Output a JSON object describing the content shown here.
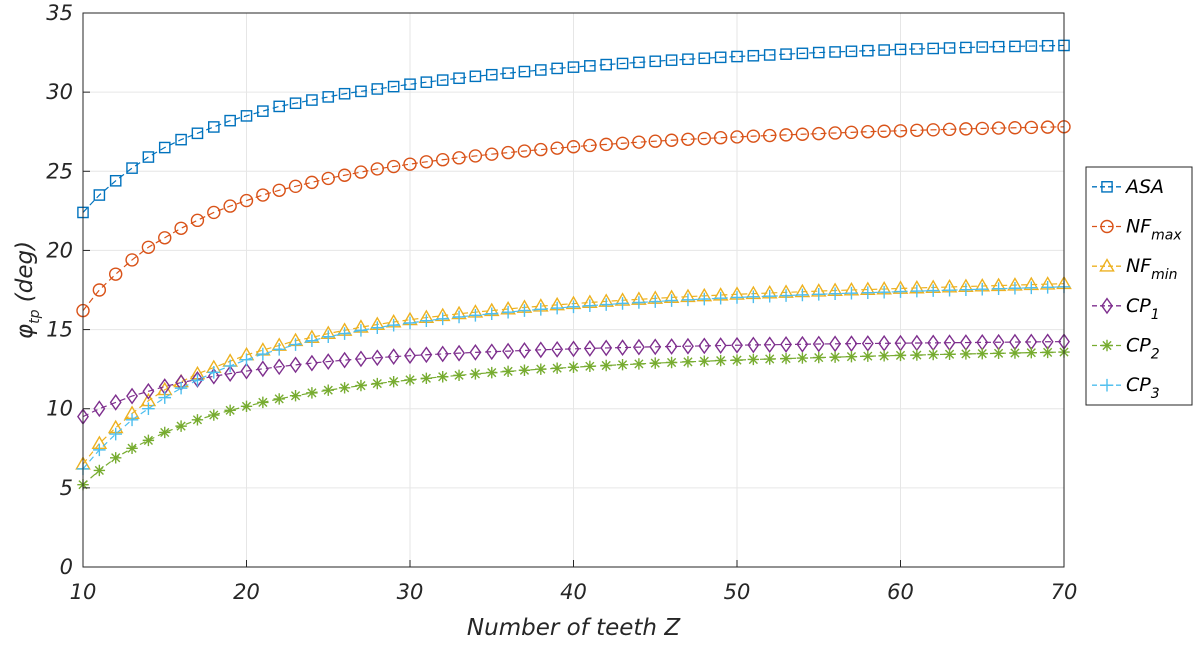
{
  "chart_data": {
    "type": "line",
    "title": "",
    "xlabel": "Number of teeth Z",
    "ylabel": {
      "base": "φ",
      "sub": "tp",
      "unit": " (deg)"
    },
    "xlim": [
      10,
      70
    ],
    "ylim": [
      0,
      35
    ],
    "xticks": [
      10,
      20,
      30,
      40,
      50,
      60,
      70
    ],
    "yticks": [
      0,
      5,
      10,
      15,
      20,
      25,
      30,
      35
    ],
    "grid": true,
    "legend_position": "right",
    "x": [
      10,
      11,
      12,
      13,
      14,
      15,
      16,
      17,
      18,
      19,
      20,
      21,
      22,
      23,
      24,
      25,
      26,
      27,
      28,
      29,
      30,
      31,
      32,
      33,
      34,
      35,
      36,
      37,
      38,
      39,
      40,
      41,
      42,
      43,
      44,
      45,
      46,
      47,
      48,
      49,
      50,
      51,
      52,
      53,
      54,
      55,
      56,
      57,
      58,
      59,
      60,
      61,
      62,
      63,
      64,
      65,
      66,
      67,
      68,
      69,
      70
    ],
    "series": [
      {
        "name": "ASA",
        "base": "ASA",
        "sub": "",
        "color": "#0072BD",
        "marker": "square",
        "values": [
          22.4,
          23.5,
          24.4,
          25.2,
          25.9,
          26.5,
          27.0,
          27.4,
          27.8,
          28.2,
          28.5,
          28.8,
          29.1,
          29.3,
          29.5,
          29.7,
          29.9,
          30.05,
          30.2,
          30.35,
          30.5,
          30.63,
          30.76,
          30.88,
          31.0,
          31.1,
          31.2,
          31.3,
          31.4,
          31.5,
          31.58,
          31.66,
          31.74,
          31.81,
          31.88,
          31.95,
          32.02,
          32.08,
          32.14,
          32.2,
          32.25,
          32.3,
          32.35,
          32.4,
          32.45,
          32.5,
          32.54,
          32.58,
          32.62,
          32.66,
          32.7,
          32.73,
          32.76,
          32.79,
          32.82,
          32.85,
          32.87,
          32.89,
          32.91,
          32.93,
          32.95
        ]
      },
      {
        "name": "NF_max",
        "base": "NF",
        "sub": "max",
        "color": "#D95319",
        "marker": "circle",
        "values": [
          16.2,
          17.5,
          18.5,
          19.4,
          20.2,
          20.8,
          21.4,
          21.9,
          22.4,
          22.8,
          23.15,
          23.5,
          23.8,
          24.05,
          24.3,
          24.55,
          24.75,
          24.95,
          25.15,
          25.3,
          25.45,
          25.6,
          25.73,
          25.85,
          25.97,
          26.08,
          26.18,
          26.28,
          26.37,
          26.46,
          26.55,
          26.63,
          26.7,
          26.77,
          26.84,
          26.9,
          26.96,
          27.02,
          27.07,
          27.12,
          27.17,
          27.22,
          27.26,
          27.3,
          27.34,
          27.38,
          27.42,
          27.46,
          27.5,
          27.53,
          27.56,
          27.59,
          27.62,
          27.65,
          27.68,
          27.71,
          27.73,
          27.75,
          27.77,
          27.79,
          27.81
        ]
      },
      {
        "name": "NF_min",
        "base": "NF",
        "sub": "min",
        "color": "#EDB120",
        "marker": "triangle",
        "values": [
          6.5,
          7.8,
          8.8,
          9.7,
          10.5,
          11.2,
          11.7,
          12.2,
          12.6,
          13.0,
          13.4,
          13.7,
          14.0,
          14.3,
          14.5,
          14.75,
          14.95,
          15.15,
          15.32,
          15.48,
          15.62,
          15.76,
          15.88,
          16.0,
          16.1,
          16.2,
          16.3,
          16.4,
          16.48,
          16.56,
          16.64,
          16.71,
          16.78,
          16.85,
          16.91,
          16.97,
          17.03,
          17.08,
          17.13,
          17.18,
          17.23,
          17.27,
          17.31,
          17.35,
          17.39,
          17.43,
          17.47,
          17.5,
          17.53,
          17.56,
          17.6,
          17.63,
          17.66,
          17.69,
          17.72,
          17.75,
          17.78,
          17.81,
          17.84,
          17.87,
          17.9
        ]
      },
      {
        "name": "CP_1",
        "base": "CP",
        "sub": "1",
        "color": "#7E2F8E",
        "marker": "diamond",
        "values": [
          9.5,
          10.0,
          10.4,
          10.8,
          11.1,
          11.4,
          11.65,
          11.85,
          12.05,
          12.22,
          12.38,
          12.52,
          12.65,
          12.77,
          12.88,
          12.98,
          13.07,
          13.15,
          13.22,
          13.29,
          13.35,
          13.41,
          13.46,
          13.51,
          13.56,
          13.6,
          13.64,
          13.68,
          13.72,
          13.75,
          13.78,
          13.81,
          13.84,
          13.86,
          13.89,
          13.91,
          13.93,
          13.95,
          13.97,
          13.99,
          14.01,
          14.03,
          14.04,
          14.06,
          14.07,
          14.09,
          14.1,
          14.11,
          14.12,
          14.13,
          14.14,
          14.15,
          14.16,
          14.17,
          14.18,
          14.19,
          14.2,
          14.21,
          14.22,
          14.23,
          14.24
        ]
      },
      {
        "name": "CP_2",
        "base": "CP",
        "sub": "2",
        "color": "#77AC30",
        "marker": "asterisk",
        "values": [
          5.2,
          6.1,
          6.9,
          7.5,
          8.0,
          8.5,
          8.9,
          9.3,
          9.6,
          9.9,
          10.15,
          10.4,
          10.62,
          10.82,
          11.0,
          11.17,
          11.32,
          11.46,
          11.59,
          11.71,
          11.82,
          11.92,
          12.02,
          12.11,
          12.2,
          12.28,
          12.36,
          12.43,
          12.5,
          12.56,
          12.62,
          12.68,
          12.73,
          12.78,
          12.83,
          12.88,
          12.92,
          12.96,
          13.0,
          13.04,
          13.07,
          13.11,
          13.14,
          13.17,
          13.2,
          13.23,
          13.26,
          13.29,
          13.32,
          13.34,
          13.37,
          13.39,
          13.42,
          13.44,
          13.46,
          13.48,
          13.5,
          13.52,
          13.54,
          13.56,
          13.58
        ]
      },
      {
        "name": "CP_3",
        "base": "CP",
        "sub": "3",
        "color": "#4DBEEE",
        "marker": "plus",
        "values": [
          6.2,
          7.4,
          8.4,
          9.3,
          10.0,
          10.7,
          11.3,
          11.8,
          12.3,
          12.7,
          13.1,
          13.45,
          13.75,
          14.05,
          14.3,
          14.55,
          14.75,
          14.95,
          15.12,
          15.28,
          15.42,
          15.56,
          15.68,
          15.8,
          15.9,
          16.0,
          16.1,
          16.2,
          16.28,
          16.36,
          16.44,
          16.51,
          16.58,
          16.65,
          16.71,
          16.77,
          16.83,
          16.88,
          16.93,
          16.98,
          17.03,
          17.07,
          17.11,
          17.15,
          17.19,
          17.23,
          17.27,
          17.3,
          17.33,
          17.36,
          17.4,
          17.43,
          17.46,
          17.49,
          17.52,
          17.55,
          17.58,
          17.61,
          17.64,
          17.67,
          17.7
        ]
      }
    ]
  }
}
